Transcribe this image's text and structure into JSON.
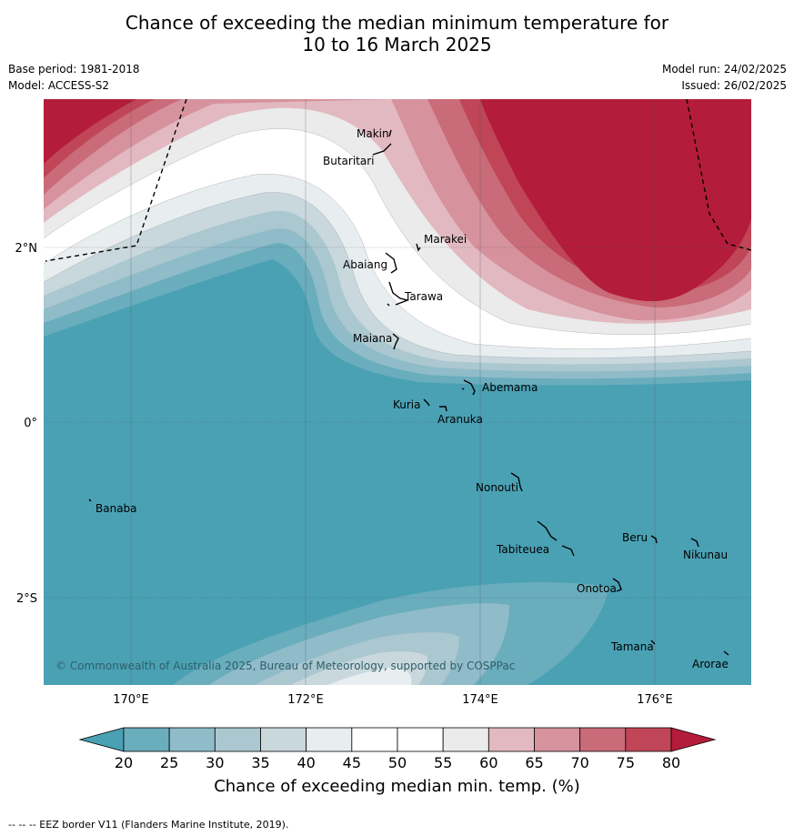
{
  "title": {
    "line1": "Chance of exceeding the median minimum temperature for",
    "line2": "10 to 16 March 2025"
  },
  "meta": {
    "base_period": "Base period: 1981-2018",
    "model": "Model: ACCESS-S2",
    "model_run": "Model run: 24/02/2025",
    "issued": "Issued: 26/02/2025"
  },
  "map": {
    "lat_labels": [
      "2°N",
      "0°",
      "2°S"
    ],
    "lon_labels": [
      "170°E",
      "172°E",
      "174°E",
      "176°E"
    ],
    "copyright": "© Commonwealth of Australia 2025, Bureau of Meteorology, supported by COSPPac",
    "places": [
      {
        "name": "Makin"
      },
      {
        "name": "Butaritari"
      },
      {
        "name": "Marakei"
      },
      {
        "name": "Abaiang"
      },
      {
        "name": "Tarawa"
      },
      {
        "name": "Maiana"
      },
      {
        "name": "Abemama"
      },
      {
        "name": "Kuria"
      },
      {
        "name": "Aranuka"
      },
      {
        "name": "Banaba"
      },
      {
        "name": "Nonouti"
      },
      {
        "name": "Beru"
      },
      {
        "name": "Nikunau"
      },
      {
        "name": "Tabiteuea"
      },
      {
        "name": "Onotoa"
      },
      {
        "name": "Tamana"
      },
      {
        "name": "Arorae"
      }
    ]
  },
  "colorbar": {
    "ticks": [
      "20",
      "25",
      "30",
      "35",
      "40",
      "45",
      "50",
      "55",
      "60",
      "65",
      "70",
      "75",
      "80"
    ],
    "colors": [
      "#4aa1b4",
      "#6aadbd",
      "#8fbcc8",
      "#abc7cf",
      "#c9d8dd",
      "#e8eef0",
      "#ffffff",
      "#ffffff",
      "#ebebeb",
      "#e2b9c1",
      "#d6929d",
      "#c96b78",
      "#bf4557",
      "#b31c3b"
    ],
    "label": "Chance of exceeding median min. temp. (%)"
  },
  "footnote": "--  --  -- EEZ border V11 (Flanders Marine Institute, 2019)."
}
